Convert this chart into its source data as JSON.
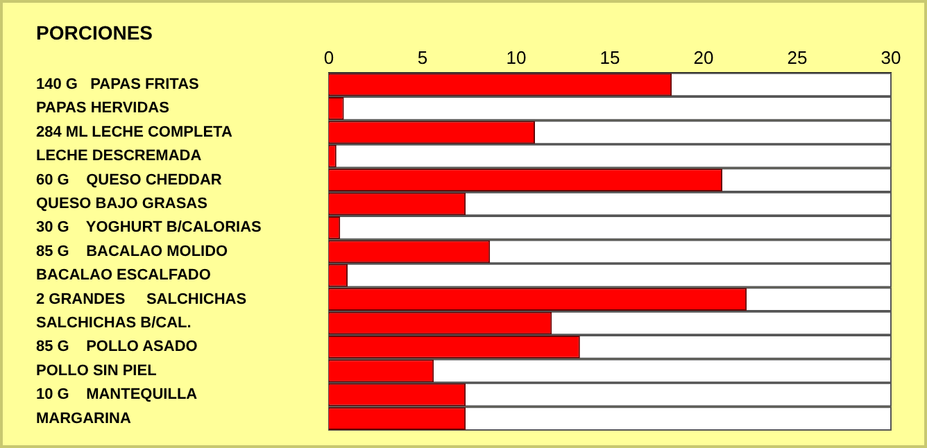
{
  "chart_data": {
    "type": "bar",
    "orientation": "horizontal",
    "title": "PORCIONES",
    "categories": [
      "140 G   PAPAS FRITAS",
      "PAPAS HERVIDAS",
      "284 ML LECHE COMPLETA",
      "LECHE DESCREMADA",
      "60 G    QUESO CHEDDAR",
      "QUESO BAJO GRASAS",
      "30 G    YOGHURT B/CALORIAS",
      "85 G    BACALAO MOLIDO",
      "BACALAO ESCALFADO",
      "2 GRANDES     SALCHICHAS",
      "SALCHICHAS B/CAL.",
      "85 G    POLLO ASADO",
      "POLLO SIN PIEL",
      "10 G    MANTEQUILLA",
      "MARGARINA"
    ],
    "values": [
      18.3,
      0.8,
      11.0,
      0.4,
      21.0,
      7.3,
      0.6,
      8.6,
      1.0,
      22.3,
      11.9,
      13.4,
      5.6,
      7.3,
      7.3
    ],
    "color": "#ff0000",
    "xlim": [
      0,
      30
    ],
    "xticks": [
      0,
      5,
      10,
      15,
      20,
      25,
      30
    ],
    "grid": false,
    "legend": false
  }
}
